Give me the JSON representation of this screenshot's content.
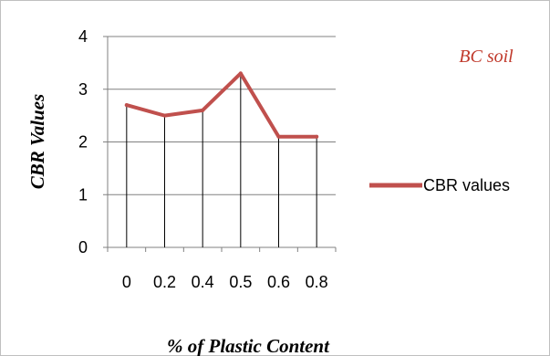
{
  "chart_data": {
    "type": "line",
    "title": "",
    "xlabel": "% of Plastic Content",
    "ylabel": "CBR Values",
    "categories": [
      "0",
      "0.2",
      "0.4",
      "0.5",
      "0.6",
      "0.8"
    ],
    "series": [
      {
        "name": "CBR values",
        "values": [
          2.7,
          2.5,
          2.6,
          3.3,
          2.1,
          2.1
        ],
        "color": "#c0504d"
      }
    ],
    "y_ticks": [
      "0",
      "1",
      "2",
      "3",
      "4"
    ],
    "ylim": [
      0,
      4
    ],
    "drop_lines": true,
    "grid": "horizontal",
    "legend_position": "right",
    "annotation": {
      "text": "BC soil",
      "color": "#c0392b"
    }
  }
}
